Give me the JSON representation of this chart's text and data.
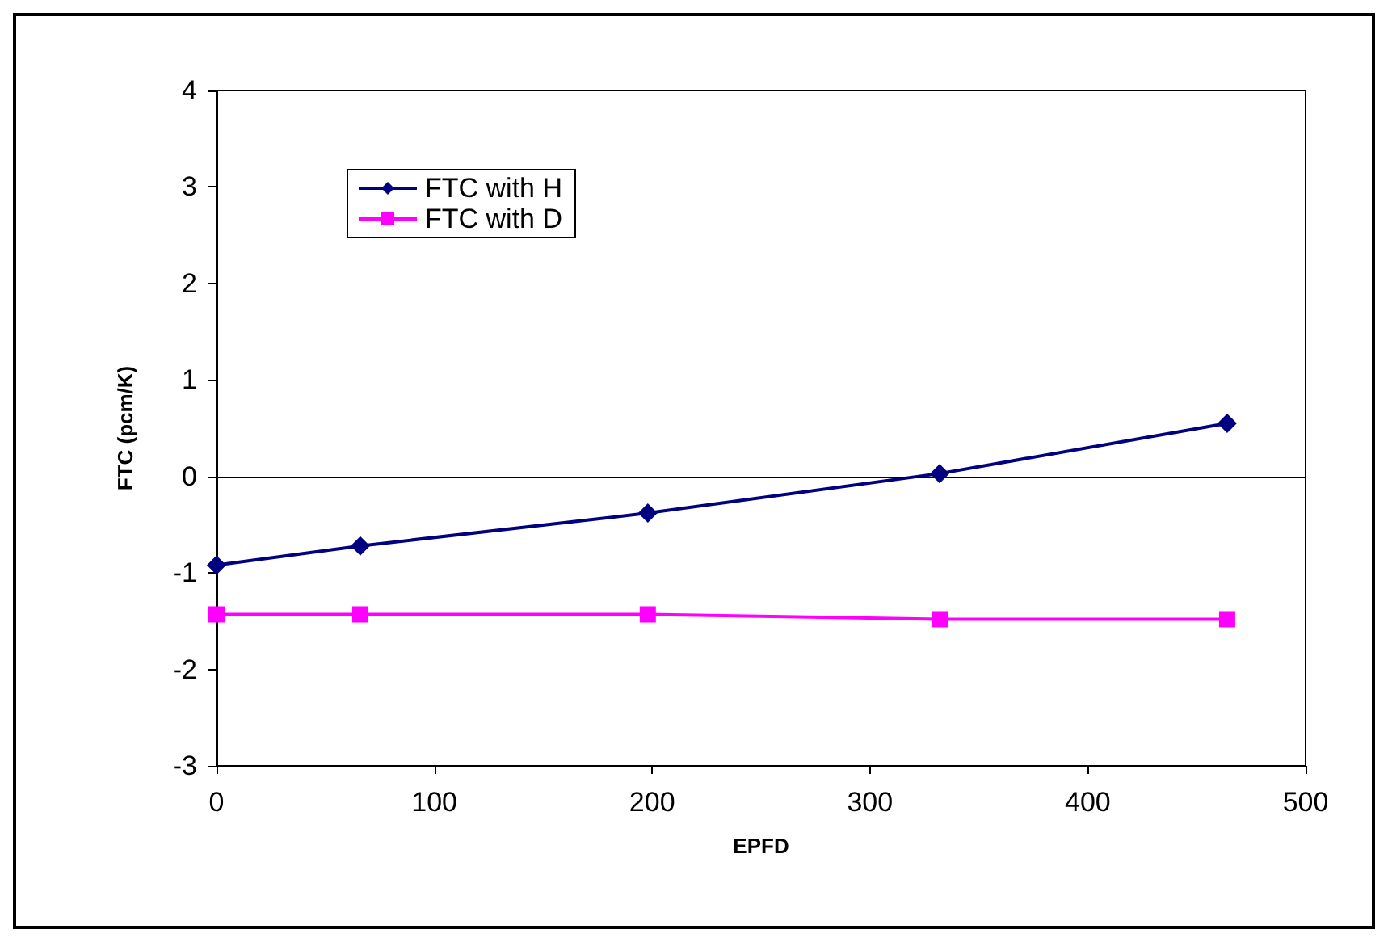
{
  "chart_data": {
    "type": "line",
    "xlabel": "EPFD",
    "ylabel": "FTC (pcm/K)",
    "series": [
      {
        "name": "FTC with H",
        "color": "#000080",
        "marker": "diamond",
        "x": [
          0,
          66,
          198,
          332,
          464
        ],
        "values": [
          -0.92,
          -0.72,
          -0.38,
          0.03,
          0.55
        ]
      },
      {
        "name": "FTC with D",
        "color": "#ff00ff",
        "marker": "square",
        "x": [
          0,
          66,
          198,
          332,
          464
        ],
        "values": [
          -1.43,
          -1.43,
          -1.43,
          -1.48,
          -1.48
        ]
      }
    ],
    "xlim": [
      0,
      500
    ],
    "xticks": [
      0,
      100,
      200,
      300,
      400,
      500
    ],
    "ylim": [
      -3,
      4
    ],
    "yticks": [
      -3,
      -2,
      -1,
      0,
      1,
      2,
      3,
      4
    ],
    "ref_lines": [
      {
        "axis": "y",
        "value": 0,
        "color": "#000000"
      }
    ],
    "grid": false,
    "legend": "top left",
    "line_style": "solid"
  }
}
